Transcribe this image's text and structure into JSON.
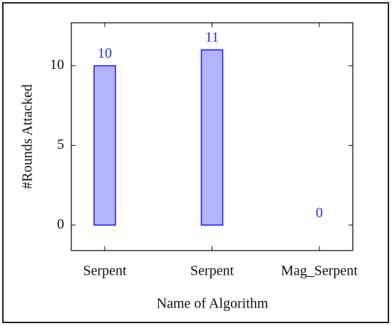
{
  "chart_data": {
    "type": "bar",
    "x_label": "Name of Algorithm",
    "y_label": "#Rounds Attacked",
    "categories": [
      "Serpent",
      "Serpent",
      "Mag_Serpent"
    ],
    "values": [
      10,
      11,
      0
    ],
    "color": "#b3b3f7",
    "edge_color": "#1a1ae6",
    "label_color": "#2a2ae8",
    "ylim": [
      -1.6,
      12.7
    ],
    "yticks": [
      0,
      5,
      10
    ]
  }
}
